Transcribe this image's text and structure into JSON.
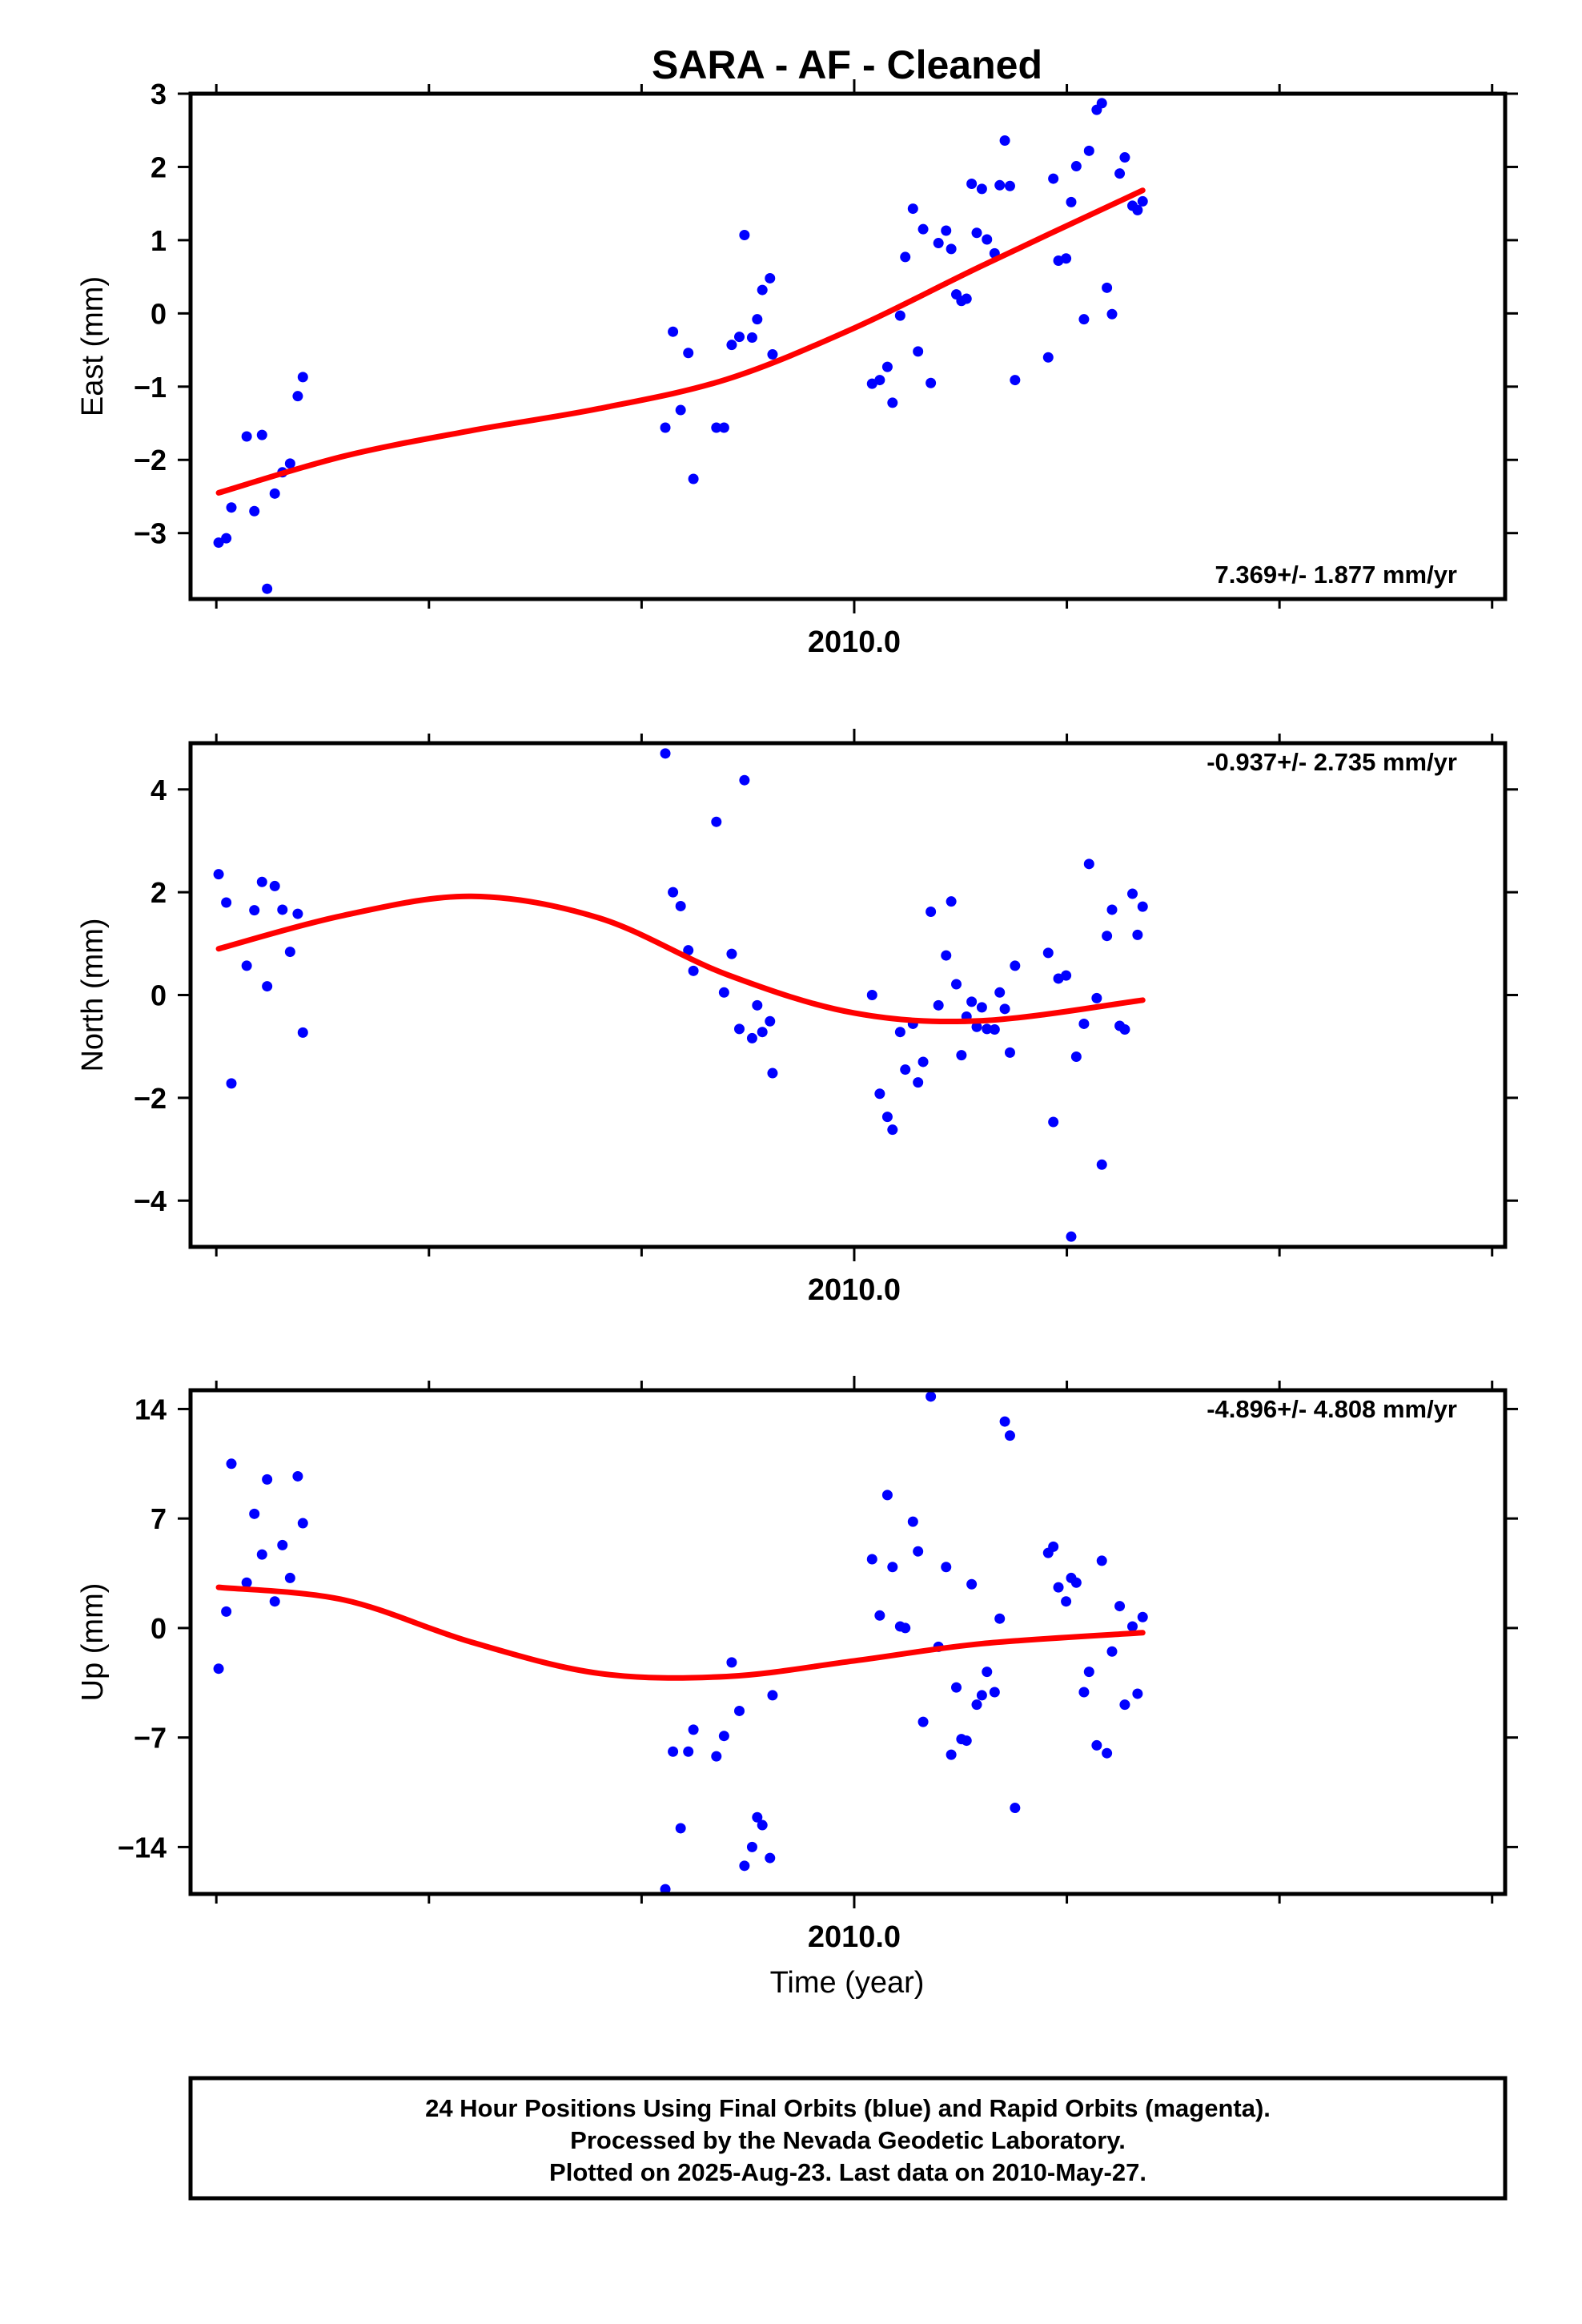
{
  "title": "SARA  - AF - Cleaned",
  "xlabel": "Time (year)",
  "x_tick_label": "2010.0",
  "footer": [
    "24 Hour Positions Using Final Orbits (blue) and Rapid Orbits (magenta).",
    "Processed by the Nevada Geodetic Laboratory.",
    "Plotted on 2025-Aug-23. Last data on 2010-May-27."
  ],
  "colors": {
    "points": "#0000ff",
    "fit": "#ff0000",
    "axis": "#000000"
  },
  "chart_data": [
    {
      "type": "scatter",
      "name": "east",
      "ylabel": "East (mm)",
      "rate_label": "7.369+/- 1.877 mm/yr",
      "ylim": [
        -3.9,
        3.0
      ],
      "xlim": [
        2009.74,
        2010.255
      ],
      "yticks": [
        3,
        2,
        1,
        0,
        -1,
        -2,
        -3
      ],
      "ytick_labels": [
        "3",
        "2",
        "1",
        "0",
        "−1",
        "−2",
        "−3"
      ],
      "points": [
        {
          "x": 2009.751,
          "y": -3.13
        },
        {
          "x": 2009.754,
          "y": -3.07
        },
        {
          "x": 2009.756,
          "y": -2.65
        },
        {
          "x": 2009.762,
          "y": -1.68
        },
        {
          "x": 2009.765,
          "y": -2.7
        },
        {
          "x": 2009.768,
          "y": -1.66
        },
        {
          "x": 2009.77,
          "y": -3.76
        },
        {
          "x": 2009.773,
          "y": -2.46
        },
        {
          "x": 2009.776,
          "y": -2.17
        },
        {
          "x": 2009.779,
          "y": -2.05
        },
        {
          "x": 2009.782,
          "y": -1.13
        },
        {
          "x": 2009.784,
          "y": -0.87
        },
        {
          "x": 2009.926,
          "y": -1.56
        },
        {
          "x": 2009.929,
          "y": -0.25
        },
        {
          "x": 2009.932,
          "y": -1.32
        },
        {
          "x": 2009.935,
          "y": -0.54
        },
        {
          "x": 2009.937,
          "y": -2.26
        },
        {
          "x": 2009.946,
          "y": -1.56
        },
        {
          "x": 2009.949,
          "y": -1.56
        },
        {
          "x": 2009.952,
          "y": -0.43
        },
        {
          "x": 2009.955,
          "y": -0.32
        },
        {
          "x": 2009.957,
          "y": 1.07
        },
        {
          "x": 2009.96,
          "y": -0.33
        },
        {
          "x": 2009.962,
          "y": -0.08
        },
        {
          "x": 2009.964,
          "y": 0.32
        },
        {
          "x": 2009.967,
          "y": 0.48
        },
        {
          "x": 2009.968,
          "y": -0.56
        },
        {
          "x": 2010.007,
          "y": -0.96
        },
        {
          "x": 2010.01,
          "y": -0.91
        },
        {
          "x": 2010.013,
          "y": -0.73
        },
        {
          "x": 2010.015,
          "y": -1.22
        },
        {
          "x": 2010.018,
          "y": -0.03
        },
        {
          "x": 2010.02,
          "y": 0.77
        },
        {
          "x": 2010.023,
          "y": 1.43
        },
        {
          "x": 2010.025,
          "y": -0.52
        },
        {
          "x": 2010.027,
          "y": 1.15
        },
        {
          "x": 2010.03,
          "y": -0.95
        },
        {
          "x": 2010.033,
          "y": 0.96
        },
        {
          "x": 2010.036,
          "y": 1.13
        },
        {
          "x": 2010.038,
          "y": 0.88
        },
        {
          "x": 2010.04,
          "y": 0.26
        },
        {
          "x": 2010.042,
          "y": 0.17
        },
        {
          "x": 2010.044,
          "y": 0.2
        },
        {
          "x": 2010.046,
          "y": 1.77
        },
        {
          "x": 2010.048,
          "y": 1.1
        },
        {
          "x": 2010.05,
          "y": 1.7
        },
        {
          "x": 2010.052,
          "y": 1.01
        },
        {
          "x": 2010.055,
          "y": 0.82
        },
        {
          "x": 2010.057,
          "y": 1.75
        },
        {
          "x": 2010.059,
          "y": 2.36
        },
        {
          "x": 2010.061,
          "y": 1.74
        },
        {
          "x": 2010.063,
          "y": -0.91
        },
        {
          "x": 2010.076,
          "y": -0.6
        },
        {
          "x": 2010.078,
          "y": 1.84
        },
        {
          "x": 2010.08,
          "y": 0.72
        },
        {
          "x": 2010.083,
          "y": 0.75
        },
        {
          "x": 2010.085,
          "y": 1.52
        },
        {
          "x": 2010.087,
          "y": 2.01
        },
        {
          "x": 2010.09,
          "y": -0.08
        },
        {
          "x": 2010.092,
          "y": 2.22
        },
        {
          "x": 2010.095,
          "y": 2.78
        },
        {
          "x": 2010.097,
          "y": 2.87
        },
        {
          "x": 2010.099,
          "y": 0.35
        },
        {
          "x": 2010.101,
          "y": -0.01
        },
        {
          "x": 2010.104,
          "y": 1.91
        },
        {
          "x": 2010.106,
          "y": 2.13
        },
        {
          "x": 2010.109,
          "y": 1.47
        },
        {
          "x": 2010.111,
          "y": 1.41
        },
        {
          "x": 2010.113,
          "y": 1.53
        }
      ],
      "fit": [
        {
          "x": 2009.751,
          "y": -2.45
        },
        {
          "x": 2009.8,
          "y": -1.95
        },
        {
          "x": 2009.85,
          "y": -1.6
        },
        {
          "x": 2009.9,
          "y": -1.3
        },
        {
          "x": 2009.95,
          "y": -0.9
        },
        {
          "x": 2010.0,
          "y": -0.2
        },
        {
          "x": 2010.05,
          "y": 0.65
        },
        {
          "x": 2010.113,
          "y": 1.68
        }
      ]
    },
    {
      "type": "scatter",
      "name": "north",
      "ylabel": "North (mm)",
      "rate_label": "-0.937+/- 2.735 mm/yr",
      "ylim": [
        -4.9,
        4.9
      ],
      "xlim": [
        2009.74,
        2010.255
      ],
      "yticks": [
        4,
        2,
        0,
        -2,
        -4
      ],
      "ytick_labels": [
        "4",
        "2",
        "0",
        "−2",
        "−4"
      ],
      "points": [
        {
          "x": 2009.751,
          "y": 2.35
        },
        {
          "x": 2009.754,
          "y": 1.8
        },
        {
          "x": 2009.756,
          "y": -1.72
        },
        {
          "x": 2009.762,
          "y": 0.57
        },
        {
          "x": 2009.765,
          "y": 1.65
        },
        {
          "x": 2009.768,
          "y": 2.2
        },
        {
          "x": 2009.77,
          "y": 0.17
        },
        {
          "x": 2009.773,
          "y": 2.12
        },
        {
          "x": 2009.776,
          "y": 1.66
        },
        {
          "x": 2009.779,
          "y": 0.84
        },
        {
          "x": 2009.782,
          "y": 1.58
        },
        {
          "x": 2009.784,
          "y": -0.73
        },
        {
          "x": 2009.926,
          "y": 4.7
        },
        {
          "x": 2009.929,
          "y": 2.0
        },
        {
          "x": 2009.932,
          "y": 1.73
        },
        {
          "x": 2009.935,
          "y": 0.87
        },
        {
          "x": 2009.937,
          "y": 0.47
        },
        {
          "x": 2009.946,
          "y": 3.37
        },
        {
          "x": 2009.949,
          "y": 0.05
        },
        {
          "x": 2009.952,
          "y": 0.8
        },
        {
          "x": 2009.955,
          "y": -0.66
        },
        {
          "x": 2009.957,
          "y": 4.18
        },
        {
          "x": 2009.96,
          "y": -0.84
        },
        {
          "x": 2009.962,
          "y": -0.2
        },
        {
          "x": 2009.964,
          "y": -0.72
        },
        {
          "x": 2009.967,
          "y": -0.51
        },
        {
          "x": 2009.968,
          "y": -1.52
        },
        {
          "x": 2010.007,
          "y": 0.0
        },
        {
          "x": 2010.01,
          "y": -1.92
        },
        {
          "x": 2010.013,
          "y": -2.37
        },
        {
          "x": 2010.015,
          "y": -2.62
        },
        {
          "x": 2010.018,
          "y": -0.72
        },
        {
          "x": 2010.02,
          "y": -1.45
        },
        {
          "x": 2010.023,
          "y": -0.56
        },
        {
          "x": 2010.025,
          "y": -1.7
        },
        {
          "x": 2010.027,
          "y": -1.3
        },
        {
          "x": 2010.03,
          "y": 1.62
        },
        {
          "x": 2010.033,
          "y": -0.2
        },
        {
          "x": 2010.036,
          "y": 0.77
        },
        {
          "x": 2010.038,
          "y": 1.82
        },
        {
          "x": 2010.04,
          "y": 0.21
        },
        {
          "x": 2010.042,
          "y": -1.17
        },
        {
          "x": 2010.044,
          "y": -0.42
        },
        {
          "x": 2010.046,
          "y": -0.13
        },
        {
          "x": 2010.048,
          "y": -0.62
        },
        {
          "x": 2010.05,
          "y": -0.24
        },
        {
          "x": 2010.052,
          "y": -0.66
        },
        {
          "x": 2010.055,
          "y": -0.67
        },
        {
          "x": 2010.057,
          "y": 0.05
        },
        {
          "x": 2010.059,
          "y": -0.27
        },
        {
          "x": 2010.061,
          "y": -1.12
        },
        {
          "x": 2010.063,
          "y": 0.57
        },
        {
          "x": 2010.076,
          "y": 0.82
        },
        {
          "x": 2010.078,
          "y": -2.47
        },
        {
          "x": 2010.08,
          "y": 0.32
        },
        {
          "x": 2010.083,
          "y": 0.38
        },
        {
          "x": 2010.085,
          "y": -4.7
        },
        {
          "x": 2010.087,
          "y": -1.2
        },
        {
          "x": 2010.09,
          "y": -0.56
        },
        {
          "x": 2010.092,
          "y": 2.55
        },
        {
          "x": 2010.095,
          "y": -0.06
        },
        {
          "x": 2010.097,
          "y": -3.3
        },
        {
          "x": 2010.099,
          "y": 1.15
        },
        {
          "x": 2010.101,
          "y": 1.66
        },
        {
          "x": 2010.104,
          "y": -0.6
        },
        {
          "x": 2010.106,
          "y": -0.67
        },
        {
          "x": 2010.109,
          "y": 1.97
        },
        {
          "x": 2010.111,
          "y": 1.17
        },
        {
          "x": 2010.113,
          "y": 1.72
        }
      ],
      "fit": [
        {
          "x": 2009.751,
          "y": 0.9
        },
        {
          "x": 2009.8,
          "y": 1.55
        },
        {
          "x": 2009.85,
          "y": 1.92
        },
        {
          "x": 2009.9,
          "y": 1.5
        },
        {
          "x": 2009.95,
          "y": 0.4
        },
        {
          "x": 2010.0,
          "y": -0.35
        },
        {
          "x": 2010.05,
          "y": -0.5
        },
        {
          "x": 2010.113,
          "y": -0.1
        }
      ]
    },
    {
      "type": "scatter",
      "name": "up",
      "ylabel": "Up (mm)",
      "rate_label": "-4.896+/- 4.808 mm/yr",
      "ylim": [
        -17,
        15.2
      ],
      "xlim": [
        2009.74,
        2010.255
      ],
      "yticks": [
        14,
        7,
        0,
        -7,
        -14
      ],
      "ytick_labels": [
        "14",
        "7",
        "0",
        "−7",
        "−14"
      ],
      "points": [
        {
          "x": 2009.751,
          "y": -2.6
        },
        {
          "x": 2009.754,
          "y": 1.05
        },
        {
          "x": 2009.756,
          "y": 10.5
        },
        {
          "x": 2009.762,
          "y": 2.9
        },
        {
          "x": 2009.765,
          "y": 7.3
        },
        {
          "x": 2009.768,
          "y": 4.7
        },
        {
          "x": 2009.77,
          "y": 9.5
        },
        {
          "x": 2009.773,
          "y": 1.7
        },
        {
          "x": 2009.776,
          "y": 5.3
        },
        {
          "x": 2009.779,
          "y": 3.2
        },
        {
          "x": 2009.782,
          "y": 9.7
        },
        {
          "x": 2009.784,
          "y": 6.7
        },
        {
          "x": 2009.926,
          "y": -16.7
        },
        {
          "x": 2009.929,
          "y": -7.9
        },
        {
          "x": 2009.932,
          "y": -12.8
        },
        {
          "x": 2009.935,
          "y": -7.9
        },
        {
          "x": 2009.937,
          "y": -6.5
        },
        {
          "x": 2009.946,
          "y": -8.2
        },
        {
          "x": 2009.949,
          "y": -6.9
        },
        {
          "x": 2009.952,
          "y": -2.2
        },
        {
          "x": 2009.955,
          "y": -5.3
        },
        {
          "x": 2009.957,
          "y": -15.2
        },
        {
          "x": 2009.96,
          "y": -14.0
        },
        {
          "x": 2009.962,
          "y": -12.1
        },
        {
          "x": 2009.964,
          "y": -12.6
        },
        {
          "x": 2009.967,
          "y": -14.7
        },
        {
          "x": 2009.968,
          "y": -4.3
        },
        {
          "x": 2010.007,
          "y": 4.4
        },
        {
          "x": 2010.01,
          "y": 0.8
        },
        {
          "x": 2010.013,
          "y": 8.5
        },
        {
          "x": 2010.015,
          "y": 3.9
        },
        {
          "x": 2010.018,
          "y": 0.1
        },
        {
          "x": 2010.02,
          "y": 0.0
        },
        {
          "x": 2010.023,
          "y": 6.8
        },
        {
          "x": 2010.025,
          "y": 4.9
        },
        {
          "x": 2010.027,
          "y": -6.0
        },
        {
          "x": 2010.03,
          "y": 14.8
        },
        {
          "x": 2010.033,
          "y": -1.2
        },
        {
          "x": 2010.036,
          "y": 3.9
        },
        {
          "x": 2010.038,
          "y": -8.1
        },
        {
          "x": 2010.04,
          "y": -3.8
        },
        {
          "x": 2010.042,
          "y": -7.1
        },
        {
          "x": 2010.044,
          "y": -7.2
        },
        {
          "x": 2010.046,
          "y": 2.8
        },
        {
          "x": 2010.048,
          "y": -4.9
        },
        {
          "x": 2010.05,
          "y": -4.3
        },
        {
          "x": 2010.052,
          "y": -2.8
        },
        {
          "x": 2010.055,
          "y": -4.1
        },
        {
          "x": 2010.057,
          "y": 0.6
        },
        {
          "x": 2010.059,
          "y": 13.2
        },
        {
          "x": 2010.061,
          "y": 12.3
        },
        {
          "x": 2010.063,
          "y": -11.5
        },
        {
          "x": 2010.076,
          "y": 4.8
        },
        {
          "x": 2010.078,
          "y": 5.2
        },
        {
          "x": 2010.08,
          "y": 2.6
        },
        {
          "x": 2010.083,
          "y": 1.7
        },
        {
          "x": 2010.085,
          "y": 3.2
        },
        {
          "x": 2010.087,
          "y": 2.9
        },
        {
          "x": 2010.09,
          "y": -4.1
        },
        {
          "x": 2010.092,
          "y": -2.8
        },
        {
          "x": 2010.095,
          "y": -7.5
        },
        {
          "x": 2010.097,
          "y": 4.3
        },
        {
          "x": 2010.099,
          "y": -8.0
        },
        {
          "x": 2010.101,
          "y": -1.5
        },
        {
          "x": 2010.104,
          "y": 1.4
        },
        {
          "x": 2010.106,
          "y": -4.9
        },
        {
          "x": 2010.109,
          "y": 0.1
        },
        {
          "x": 2010.111,
          "y": -4.2
        },
        {
          "x": 2010.113,
          "y": 0.7
        }
      ],
      "fit": [
        {
          "x": 2009.751,
          "y": 2.6
        },
        {
          "x": 2009.8,
          "y": 1.8
        },
        {
          "x": 2009.85,
          "y": -0.9
        },
        {
          "x": 2009.9,
          "y": -2.9
        },
        {
          "x": 2009.95,
          "y": -3.1
        },
        {
          "x": 2010.0,
          "y": -2.1
        },
        {
          "x": 2010.05,
          "y": -1.0
        },
        {
          "x": 2010.113,
          "y": -0.3
        }
      ]
    }
  ]
}
